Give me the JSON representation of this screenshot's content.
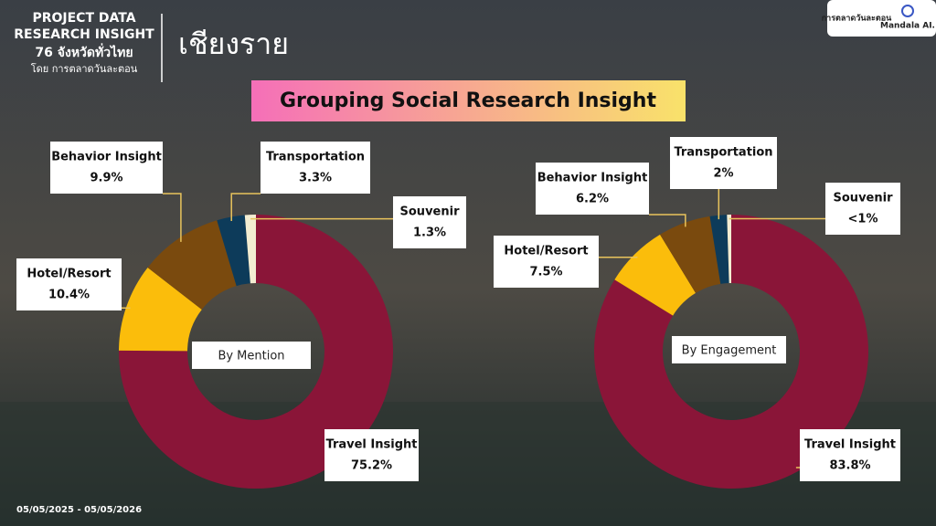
{
  "header": {
    "line1": "PROJECT DATA",
    "line2": "RESEARCH INSIGHT",
    "line3": "76 จังหวัดทั่วไทย",
    "line4": "โดย การตลาดวันละตอน",
    "province": "เชียงราย",
    "logo1": "การตลาดวันละตอน",
    "logo2": "Mandala AI."
  },
  "title": "Grouping Social Research Insight",
  "date_range": "05/05/2025 - 05/05/2026",
  "chart_data": [
    {
      "type": "pie",
      "center_label": "By Mention",
      "categories": [
        "Travel Insight",
        "Hotel/Resort",
        "Behavior Insight",
        "Transportation",
        "Souvenir"
      ],
      "values": [
        75.2,
        10.4,
        9.9,
        3.3,
        1.3
      ],
      "value_labels": [
        "75.2%",
        "10.4%",
        "9.9%",
        "3.3%",
        "1.3%"
      ],
      "colors": [
        "#8a1538",
        "#fbbd0b",
        "#7a4a0e",
        "#0d3b5a",
        "#f3edd2"
      ]
    },
    {
      "type": "pie",
      "center_label": "By Engagement",
      "categories": [
        "Travel Insight",
        "Hotel/Resort",
        "Behavior Insight",
        "Transportation",
        "Souvenir"
      ],
      "values": [
        83.8,
        7.5,
        6.2,
        2,
        0.5
      ],
      "value_labels": [
        "83.8%",
        "7.5%",
        "6.2%",
        "2%",
        "<1%"
      ],
      "colors": [
        "#8a1538",
        "#fbbd0b",
        "#7a4a0e",
        "#0d3b5a",
        "#f3edd2"
      ]
    }
  ]
}
